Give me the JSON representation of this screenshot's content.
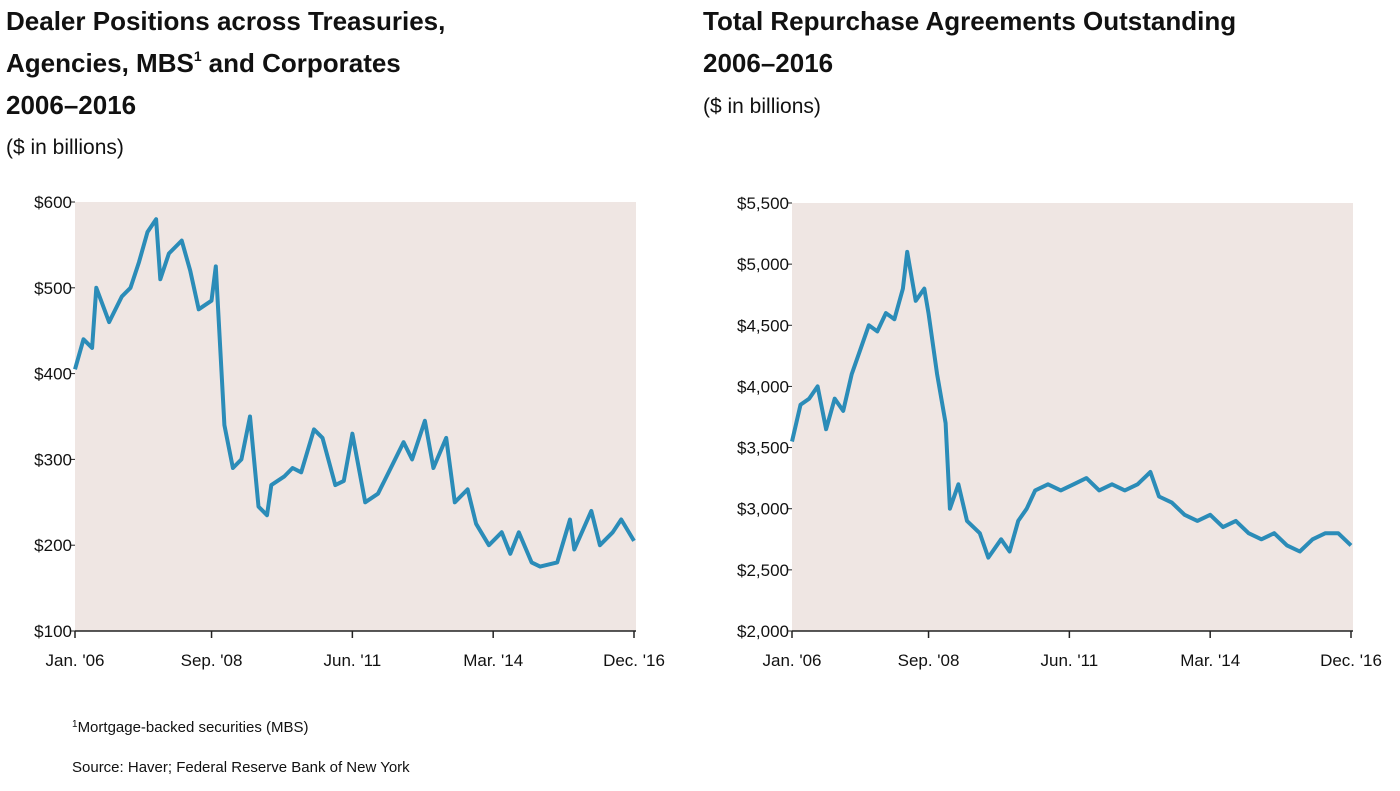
{
  "chart_data": [
    {
      "type": "line",
      "title": [
        "Dealer Positions across Treasuries,",
        "Agencies, MBS",
        "and Corporates",
        "2006–2016"
      ],
      "title_note_marker": "1",
      "subtitle": "($ in billions)",
      "xlim": [
        "2006-01",
        "2016-12"
      ],
      "xticks": [
        {
          "value": "2006-01",
          "label": "Jan. '06"
        },
        {
          "value": "2008-09",
          "label": "Sep. '08"
        },
        {
          "value": "2011-06",
          "label": "Jun. '11"
        },
        {
          "value": "2014-03",
          "label": "Mar. '14"
        },
        {
          "value": "2016-12",
          "label": "Dec. '16"
        }
      ],
      "ylim": [
        100,
        600
      ],
      "yticks": [
        {
          "value": 100,
          "label": "$100"
        },
        {
          "value": 200,
          "label": "$200"
        },
        {
          "value": 300,
          "label": "$300"
        },
        {
          "value": 400,
          "label": "$400"
        },
        {
          "value": 500,
          "label": "$500"
        },
        {
          "value": 600,
          "label": "$600"
        }
      ],
      "series": [
        {
          "color": "#2b8cb8",
          "x": [
            "2006-01",
            "2006-03",
            "2006-05",
            "2006-06",
            "2006-09",
            "2006-12",
            "2007-02",
            "2007-04",
            "2007-06",
            "2007-08",
            "2007-09",
            "2007-11",
            "2008-02",
            "2008-04",
            "2008-06",
            "2008-09",
            "2008-10",
            "2008-12",
            "2009-02",
            "2009-04",
            "2009-06",
            "2009-08",
            "2009-10",
            "2009-11",
            "2010-02",
            "2010-04",
            "2010-06",
            "2010-09",
            "2010-11",
            "2011-02",
            "2011-04",
            "2011-06",
            "2011-09",
            "2011-12",
            "2012-03",
            "2012-06",
            "2012-08",
            "2012-11",
            "2013-01",
            "2013-04",
            "2013-06",
            "2013-09",
            "2013-11",
            "2014-02",
            "2014-05",
            "2014-07",
            "2014-09",
            "2014-12",
            "2015-02",
            "2015-06",
            "2015-09",
            "2015-10",
            "2016-02",
            "2016-04",
            "2016-07",
            "2016-09",
            "2016-12"
          ],
          "values": [
            405,
            440,
            430,
            500,
            460,
            490,
            500,
            530,
            565,
            580,
            510,
            540,
            555,
            520,
            475,
            485,
            525,
            340,
            290,
            300,
            350,
            245,
            235,
            270,
            280,
            290,
            285,
            335,
            325,
            270,
            275,
            330,
            250,
            260,
            290,
            320,
            300,
            345,
            290,
            325,
            250,
            265,
            225,
            200,
            215,
            190,
            215,
            180,
            175,
            180,
            230,
            195,
            240,
            200,
            215,
            230,
            205
          ]
        }
      ]
    },
    {
      "type": "line",
      "title": [
        "Total Repurchase Agreements Outstanding",
        "2006–2016"
      ],
      "subtitle": "($ in billions)",
      "xlim": [
        "2006-01",
        "2016-12"
      ],
      "xticks": [
        {
          "value": "2006-01",
          "label": "Jan. '06"
        },
        {
          "value": "2008-09",
          "label": "Sep. '08"
        },
        {
          "value": "2011-06",
          "label": "Jun. '11"
        },
        {
          "value": "2014-03",
          "label": "Mar. '14"
        },
        {
          "value": "2016-12",
          "label": "Dec. '16"
        }
      ],
      "ylim": [
        2000,
        5500
      ],
      "yticks": [
        {
          "value": 2000,
          "label": "$2,000"
        },
        {
          "value": 2500,
          "label": "$2,500"
        },
        {
          "value": 3000,
          "label": "$3,000"
        },
        {
          "value": 3500,
          "label": "$3,500"
        },
        {
          "value": 4000,
          "label": "$4,000"
        },
        {
          "value": 4500,
          "label": "$4,500"
        },
        {
          "value": 5000,
          "label": "$5,000"
        },
        {
          "value": 5500,
          "label": "$5,500"
        }
      ],
      "series": [
        {
          "color": "#2b8cb8",
          "x": [
            "2006-01",
            "2006-03",
            "2006-05",
            "2006-07",
            "2006-09",
            "2006-11",
            "2007-01",
            "2007-03",
            "2007-05",
            "2007-07",
            "2007-09",
            "2007-11",
            "2008-01",
            "2008-03",
            "2008-04",
            "2008-06",
            "2008-08",
            "2008-09",
            "2008-11",
            "2009-01",
            "2009-02",
            "2009-04",
            "2009-06",
            "2009-09",
            "2009-11",
            "2010-02",
            "2010-04",
            "2010-06",
            "2010-08",
            "2010-10",
            "2011-01",
            "2011-04",
            "2011-07",
            "2011-10",
            "2012-01",
            "2012-04",
            "2012-07",
            "2012-10",
            "2013-01",
            "2013-03",
            "2013-06",
            "2013-09",
            "2013-12",
            "2014-03",
            "2014-06",
            "2014-09",
            "2014-12",
            "2015-03",
            "2015-06",
            "2015-09",
            "2015-12",
            "2016-03",
            "2016-06",
            "2016-09",
            "2016-12"
          ],
          "values": [
            3550,
            3850,
            3900,
            4000,
            3650,
            3900,
            3800,
            4100,
            4300,
            4500,
            4450,
            4600,
            4550,
            4800,
            5100,
            4700,
            4800,
            4600,
            4100,
            3700,
            3000,
            3200,
            2900,
            2800,
            2600,
            2750,
            2650,
            2900,
            3000,
            3150,
            3200,
            3150,
            3200,
            3250,
            3150,
            3200,
            3150,
            3200,
            3300,
            3100,
            3050,
            2950,
            2900,
            2950,
            2850,
            2900,
            2800,
            2750,
            2800,
            2700,
            2650,
            2750,
            2800,
            2800,
            2700
          ]
        }
      ]
    }
  ],
  "footnotes": {
    "marker": "1",
    "text": "Mortgage-backed securities (MBS)",
    "source": "Source: Haver; Federal Reserve Bank of New York"
  }
}
